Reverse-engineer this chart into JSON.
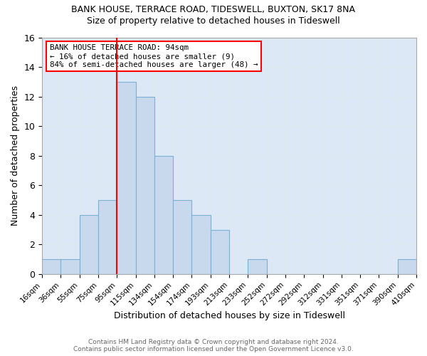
{
  "title": "BANK HOUSE, TERRACE ROAD, TIDESWELL, BUXTON, SK17 8NA",
  "subtitle": "Size of property relative to detached houses in Tideswell",
  "xlabel": "Distribution of detached houses by size in Tideswell",
  "ylabel": "Number of detached properties",
  "bin_labels": [
    "16sqm",
    "36sqm",
    "55sqm",
    "75sqm",
    "95sqm",
    "115sqm",
    "134sqm",
    "154sqm",
    "174sqm",
    "193sqm",
    "213sqm",
    "233sqm",
    "252sqm",
    "272sqm",
    "292sqm",
    "312sqm",
    "331sqm",
    "351sqm",
    "371sqm",
    "390sqm",
    "410sqm"
  ],
  "counts": [
    1,
    1,
    4,
    5,
    13,
    12,
    8,
    5,
    4,
    3,
    0,
    1,
    0,
    0,
    0,
    0,
    0,
    0,
    0,
    1
  ],
  "bar_color": "#c9d9ed",
  "bar_edge_color": "#7bafd4",
  "red_line_x": 4,
  "annotation_text": "BANK HOUSE TERRACE ROAD: 94sqm\n← 16% of detached houses are smaller (9)\n84% of semi-detached houses are larger (48) →",
  "annotation_box_color": "white",
  "annotation_box_edge": "red",
  "footer_text": "Contains HM Land Registry data © Crown copyright and database right 2024.\nContains public sector information licensed under the Open Government Licence v3.0.",
  "ylim": [
    0,
    16
  ],
  "yticks": [
    0,
    2,
    4,
    6,
    8,
    10,
    12,
    14,
    16
  ],
  "grid_color": "#dce8f0",
  "plot_bg_color": "#dce8f5",
  "fig_bg_color": "#ffffff"
}
